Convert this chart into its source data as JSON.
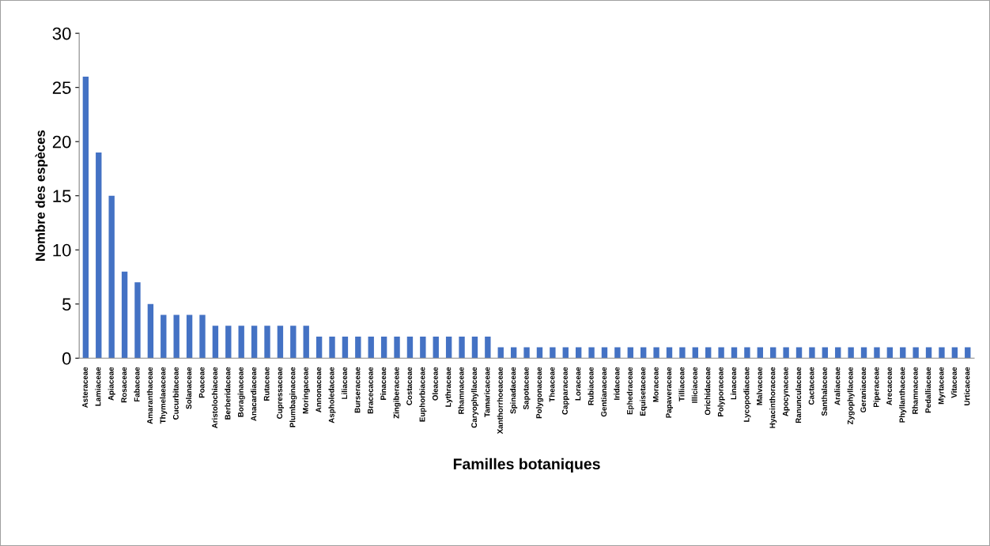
{
  "chart_data": {
    "type": "bar",
    "xlabel": "Familles botaniques",
    "ylabel": "Nombre des espèces",
    "categories": [
      "Asteraceae",
      "Lamiaceae",
      "Apiaceae",
      "Rosaceae",
      "Fabaceae",
      "Amaranthaceae",
      "Thymelaeaceae",
      "Cucurbitaceae",
      "Solanaceae",
      "Poaceae",
      "Aristolochiaceae",
      "Berberidaceae",
      "Boraginaceae",
      "Anacardiaceae",
      "Rutaceae",
      "Cupressaceae",
      "Plumbaginaceae",
      "Moringaceae",
      "Annonaceae",
      "Aspholedaceae",
      "Liliaceae",
      "Burseraceae",
      "Bracecaceae",
      "Pinaceae",
      "Zingiberaceae",
      "Costaceae",
      "Euphorbiaceae",
      "Oleaceae",
      "Lythraceae",
      "Rhamnaceae",
      "Caryophyllaceae",
      "Tamaricaceae",
      "Xanthorrhoeaceae",
      "Spinadaceae",
      "Sapotaceae",
      "Polygonaceae",
      "Theaceae",
      "Capparaceae",
      "Loraceae",
      "Rubiaceae",
      "Gentianaceae",
      "Iridaceae",
      "Ephedraceae",
      "Equisetaceae",
      "Moraceae",
      "Papaveraceae",
      "Tilliaceae",
      "Illiciaceae",
      "Orichidaceae",
      "Polyporaceae",
      "Linaceae",
      "Lycopodiaceae",
      "Malvaceae",
      "Hyacinthoraceae",
      "Apocynaceae",
      "Ranunculaceae",
      "Cactaceae",
      "Santhalaceae",
      "Araliaceae",
      "Zygophyllaceae",
      "Geraniaceae",
      "Piperaceae",
      "Arecaceae",
      "Phyllanthaceae",
      "Rhamnaceae",
      "Pedalliaceae",
      "Myrtaceae",
      "Vitaceae",
      "Urticaceae"
    ],
    "values": [
      26,
      19,
      15,
      8,
      7,
      5,
      4,
      4,
      4,
      4,
      3,
      3,
      3,
      3,
      3,
      3,
      3,
      3,
      2,
      2,
      2,
      2,
      2,
      2,
      2,
      2,
      2,
      2,
      2,
      2,
      2,
      2,
      1,
      1,
      1,
      1,
      1,
      1,
      1,
      1,
      1,
      1,
      1,
      1,
      1,
      1,
      1,
      1,
      1,
      1,
      1,
      1,
      1,
      1,
      1,
      1,
      1,
      1,
      1,
      1,
      1,
      1,
      1,
      1,
      1,
      1,
      1,
      1,
      1
    ],
    "color": "#4472c4",
    "ylim": [
      0,
      30
    ],
    "yticks": [
      0,
      5,
      10,
      15,
      20,
      25,
      30
    ],
    "grid": false,
    "legend": false
  }
}
